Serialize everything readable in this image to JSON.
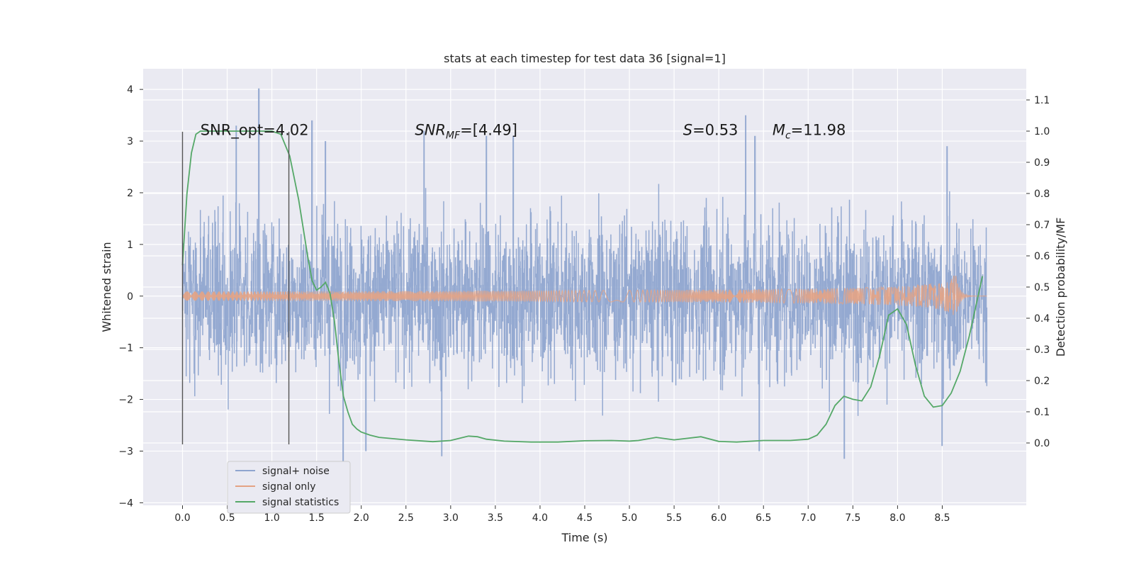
{
  "chart_data": {
    "type": "line",
    "title": "stats at each timestep for test data 36 [signal=1]",
    "xlabel": "Time (s)",
    "ylabel_left": "Whitened strain",
    "ylabel_right": "Detection probability/MF",
    "xlim": [
      -0.44,
      9.44
    ],
    "ylim_left": [
      -4.05,
      4.4
    ],
    "ylim_right": [
      -0.2,
      1.2
    ],
    "x_ticks": [
      0.0,
      0.5,
      1.0,
      1.5,
      2.0,
      2.5,
      3.0,
      3.5,
      4.0,
      4.5,
      5.0,
      5.5,
      6.0,
      6.5,
      7.0,
      7.5,
      8.0,
      8.5
    ],
    "x_tick_labels": [
      "0.0",
      "0.5",
      "1.0",
      "1.5",
      "2.0",
      "2.5",
      "3.0",
      "3.5",
      "4.0",
      "4.5",
      "5.0",
      "5.5",
      "6.0",
      "6.5",
      "7.0",
      "7.5",
      "8.0",
      "8.5"
    ],
    "y_left_ticks": [
      4,
      3,
      2,
      1,
      0,
      -1,
      -2,
      -3,
      -4
    ],
    "y_left_tick_labels": [
      "4",
      "3",
      "2",
      "1",
      "0",
      "−1",
      "−2",
      "−3",
      "−4"
    ],
    "y_right_ticks": [
      1.1,
      1.0,
      0.9,
      0.8,
      0.7,
      0.6,
      0.5,
      0.4,
      0.3,
      0.2,
      0.1,
      0.0
    ],
    "y_right_tick_labels": [
      "1.1",
      "1.0",
      "0.9",
      "0.8",
      "0.7",
      "0.6",
      "0.5",
      "0.4",
      "0.3",
      "0.2",
      "0.1",
      "0.0"
    ],
    "grid": true,
    "legend_position": "bottom-left",
    "annotations": [
      {
        "text": "SNR_opt=4.02",
        "x": 0.2,
        "y": 3.2,
        "italic": false
      },
      {
        "text": "SNR_MF=[4.49]",
        "x": 2.6,
        "y": 3.2,
        "italic": true
      },
      {
        "text": "S=0.53",
        "x": 5.6,
        "y": 3.2,
        "italic": true
      },
      {
        "text": "M_c=11.98",
        "x": 6.6,
        "y": 3.2,
        "italic": true
      }
    ],
    "vertical_markers": {
      "x": [
        0.0,
        1.19
      ],
      "y_range": [
        -2.87,
        3.18
      ],
      "color": "#555555"
    },
    "series": [
      {
        "name": "signal+ noise",
        "axis": "left",
        "color": "#8fa5cf",
        "kind": "noise",
        "x_range": [
          0.0,
          9.0
        ],
        "envelope_typical": 1.6,
        "peaks": [
          {
            "x": 0.85,
            "y": 4.02
          },
          {
            "x": 0.6,
            "y": 3.3
          },
          {
            "x": 1.45,
            "y": 3.4
          },
          {
            "x": 1.6,
            "y": 3.0
          },
          {
            "x": 2.7,
            "y": 3.2
          },
          {
            "x": 3.4,
            "y": 3.1
          },
          {
            "x": 3.7,
            "y": 3.1
          },
          {
            "x": 6.3,
            "y": 3.5
          },
          {
            "x": 6.4,
            "y": 3.1
          },
          {
            "x": 8.55,
            "y": 2.9
          },
          {
            "x": 1.8,
            "y": -3.5
          },
          {
            "x": 7.4,
            "y": -3.15
          },
          {
            "x": 2.9,
            "y": -3.1
          },
          {
            "x": 6.45,
            "y": -3.0
          },
          {
            "x": 8.5,
            "y": -2.9
          },
          {
            "x": 2.05,
            "y": -3.0
          }
        ]
      },
      {
        "name": "signal only",
        "axis": "left",
        "color": "#e4a384",
        "kind": "chirp",
        "x_range": [
          0.0,
          9.0
        ],
        "merger_time": 8.65,
        "peak_amplitude": 0.55
      },
      {
        "name": "signal statistics",
        "axis": "right",
        "color": "#55a868",
        "kind": "line",
        "x": [
          0.0,
          0.05,
          0.1,
          0.15,
          0.2,
          0.3,
          0.5,
          0.8,
          1.0,
          1.1,
          1.2,
          1.3,
          1.4,
          1.45,
          1.5,
          1.55,
          1.6,
          1.65,
          1.7,
          1.75,
          1.8,
          1.85,
          1.9,
          1.95,
          2.0,
          2.1,
          2.2,
          2.5,
          2.8,
          3.0,
          3.1,
          3.2,
          3.3,
          3.4,
          3.6,
          3.9,
          4.2,
          4.5,
          4.8,
          5.0,
          5.1,
          5.3,
          5.5,
          5.8,
          6.0,
          6.2,
          6.5,
          6.8,
          7.0,
          7.1,
          7.2,
          7.3,
          7.4,
          7.5,
          7.6,
          7.7,
          7.8,
          7.9,
          8.0,
          8.1,
          8.2,
          8.3,
          8.4,
          8.5,
          8.6,
          8.7,
          8.8,
          8.9,
          8.95
        ],
        "y": [
          0.57,
          0.8,
          0.93,
          0.99,
          1.0,
          1.0,
          1.0,
          1.0,
          1.0,
          0.99,
          0.92,
          0.78,
          0.6,
          0.52,
          0.49,
          0.5,
          0.515,
          0.48,
          0.39,
          0.26,
          0.15,
          0.1,
          0.06,
          0.045,
          0.035,
          0.025,
          0.018,
          0.01,
          0.004,
          0.008,
          0.015,
          0.022,
          0.02,
          0.012,
          0.006,
          0.003,
          0.003,
          0.007,
          0.008,
          0.006,
          0.008,
          0.018,
          0.01,
          0.02,
          0.005,
          0.003,
          0.008,
          0.008,
          0.012,
          0.025,
          0.06,
          0.12,
          0.15,
          0.14,
          0.135,
          0.18,
          0.28,
          0.41,
          0.43,
          0.38,
          0.25,
          0.15,
          0.115,
          0.12,
          0.16,
          0.23,
          0.34,
          0.47,
          0.535
        ]
      }
    ]
  }
}
